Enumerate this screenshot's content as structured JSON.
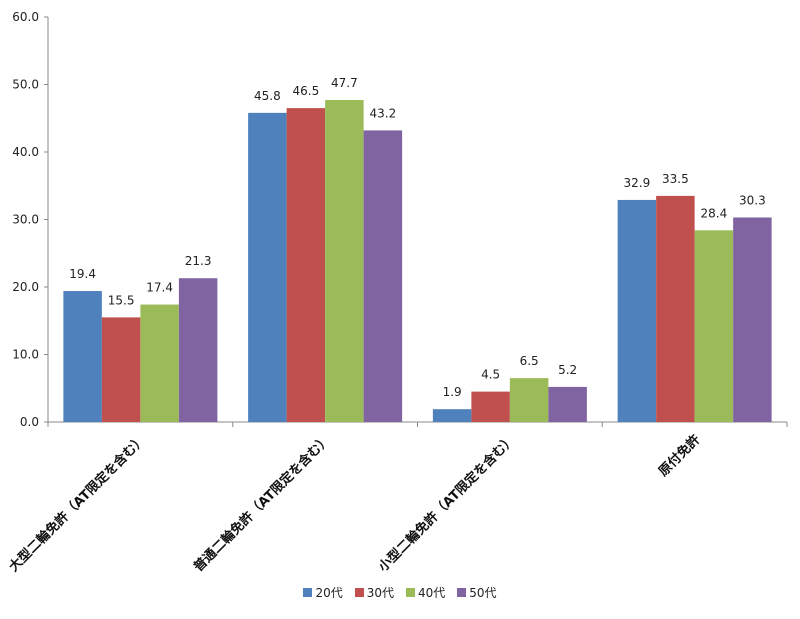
{
  "chart_data": {
    "type": "bar",
    "title": "",
    "xlabel": "",
    "ylabel": "",
    "ylim": [
      0,
      60
    ],
    "yticks": [
      "0.0",
      "10.0",
      "20.0",
      "30.0",
      "40.0",
      "50.0",
      "60.0"
    ],
    "grid": false,
    "legend_position": "bottom",
    "categories": [
      "大型二輪免許（AT限定を含む）",
      "普通二輪免許（AT限定を含む）",
      "小型二輪免許（AT限定を含む）",
      "原付免許"
    ],
    "series": [
      {
        "name": "20代",
        "color": "#4F81BD",
        "values": [
          19.4,
          45.8,
          1.9,
          32.9
        ],
        "labels": [
          "19.4",
          "45.8",
          "1.9",
          "32.9"
        ]
      },
      {
        "name": "30代",
        "color": "#C0504D",
        "values": [
          15.5,
          46.5,
          4.5,
          33.5
        ],
        "labels": [
          "15.5",
          "46.5",
          "4.5",
          "33.5"
        ]
      },
      {
        "name": "40代",
        "color": "#9BBB59",
        "values": [
          17.4,
          47.7,
          6.5,
          28.4
        ],
        "labels": [
          "17.4",
          "47.7",
          "6.5",
          "28.4"
        ]
      },
      {
        "name": "50代",
        "color": "#8064A2",
        "values": [
          21.3,
          43.2,
          5.2,
          30.3
        ],
        "labels": [
          "21.3",
          "43.2",
          "5.2",
          "30.3"
        ]
      }
    ]
  }
}
